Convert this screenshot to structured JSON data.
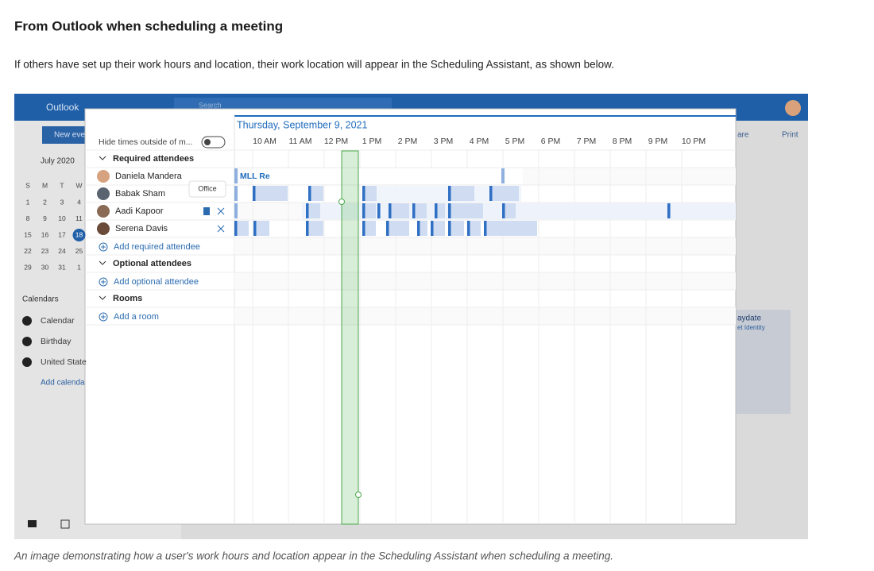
{
  "article": {
    "heading": "From Outlook when scheduling a meeting",
    "intro": "If others have set up their work hours and location, their work location will appear in the Scheduling Assistant, as shown below.",
    "caption": "An image demonstrating how a user's work hours and location appear in the Scheduling Assistant when scheduling a meeting."
  },
  "outlook": {
    "app_name": "Outlook",
    "search": "Search",
    "new_event": "New eve",
    "month": "July 2020",
    "weekdays": [
      "S",
      "M",
      "T",
      "W"
    ],
    "days": [
      [
        1,
        2,
        3,
        4
      ],
      [
        8,
        9,
        10,
        11
      ],
      [
        15,
        16,
        17,
        18
      ],
      [
        22,
        23,
        24,
        25
      ],
      [
        29,
        30,
        31,
        1
      ]
    ],
    "calendars_header": "Calendars",
    "calendars": [
      "Calendar",
      "Birthday",
      "United State"
    ],
    "add_calendar": "Add calenda",
    "share": "are",
    "print": "Print",
    "event_title": "aydate",
    "event_sub": "et Identity"
  },
  "scheduling_assistant": {
    "date": "Thursday, September 9, 2021",
    "hide_times": "Hide times outside of m...",
    "times": [
      "10 AM",
      "11 AM",
      "12 PM",
      "1 PM",
      "2 PM",
      "3 PM",
      "4 PM",
      "5 PM",
      "6 PM",
      "7 PM",
      "8 PM",
      "9 PM",
      "10 PM"
    ],
    "required_header": "Required attendees",
    "attendees": [
      "Daniela Mandera",
      "Babak Sham",
      "Aadi Kapoor",
      "Serena Davis"
    ],
    "tooltip": "Office",
    "add_required": "Add required attendee",
    "optional_header": "Optional attendees",
    "add_optional": "Add optional attendee",
    "rooms_header": "Rooms",
    "add_room": "Add a room",
    "event_label": "MLL Re"
  }
}
